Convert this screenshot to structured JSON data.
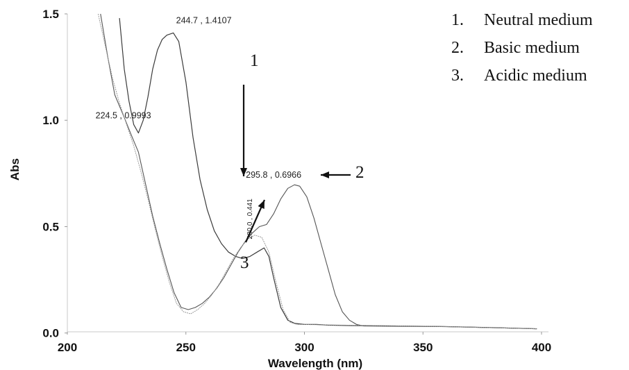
{
  "chart_data": {
    "type": "line",
    "xlabel": "Wavelength (nm)",
    "ylabel": "Abs",
    "xlim": [
      200,
      400
    ],
    "ylim": [
      -0.2,
      1.5
    ],
    "xticks": [
      "200",
      "250",
      "300",
      "350",
      "400"
    ],
    "yticks": [
      "0.0",
      "0.5",
      "1.0",
      "1.5"
    ],
    "grid": false,
    "legend_position": "top-right",
    "legend": [
      {
        "number": "1.",
        "label": "Neutral medium"
      },
      {
        "number": "2.",
        "label": "Basic medium"
      },
      {
        "number": "3.",
        "label": "Acidic medium"
      }
    ],
    "series": [
      {
        "name": "Neutral medium",
        "x": [
          222,
          224,
          226,
          228,
          230,
          232,
          234,
          236,
          238,
          240,
          242,
          244.7,
          247,
          250,
          253,
          256,
          259,
          262,
          265,
          268,
          271,
          274,
          277,
          280,
          283,
          285,
          287,
          290,
          293,
          296,
          300,
          305,
          310,
          320,
          340,
          360,
          380,
          398
        ],
        "y": [
          1.48,
          1.24,
          1.09,
          0.98,
          0.94,
          1.0,
          1.11,
          1.24,
          1.33,
          1.38,
          1.4,
          1.4107,
          1.37,
          1.18,
          0.92,
          0.72,
          0.58,
          0.48,
          0.42,
          0.38,
          0.36,
          0.35,
          0.36,
          0.38,
          0.4,
          0.36,
          0.26,
          0.12,
          0.06,
          0.045,
          0.04,
          0.04,
          0.037,
          0.035,
          0.033,
          0.03,
          0.025,
          0.02
        ]
      },
      {
        "name": "Basic medium",
        "x": [
          214,
          217,
          220,
          224.5,
          227,
          230,
          233,
          236,
          239,
          242,
          245,
          248,
          251,
          254,
          257,
          260,
          263,
          266,
          269,
          272,
          275,
          278,
          281,
          284,
          287,
          290,
          293,
          295.8,
          298,
          301,
          304,
          307,
          310,
          313,
          316,
          319,
          322,
          325,
          335,
          360,
          398
        ],
        "y": [
          1.5,
          1.3,
          1.12,
          0.9993,
          0.93,
          0.85,
          0.7,
          0.55,
          0.42,
          0.3,
          0.19,
          0.12,
          0.11,
          0.12,
          0.14,
          0.17,
          0.21,
          0.26,
          0.32,
          0.38,
          0.43,
          0.47,
          0.5,
          0.51,
          0.56,
          0.63,
          0.68,
          0.6966,
          0.69,
          0.64,
          0.54,
          0.42,
          0.3,
          0.18,
          0.1,
          0.06,
          0.04,
          0.033,
          0.032,
          0.03,
          0.02
        ]
      },
      {
        "name": "Acidic medium",
        "x": [
          213,
          216,
          219,
          222,
          225,
          228,
          231,
          234,
          237,
          240,
          243,
          246,
          249,
          252,
          255,
          258,
          261,
          264,
          267,
          270,
          273,
          276,
          279,
          282,
          285,
          288,
          291,
          294,
          297,
          300,
          310,
          330,
          360,
          398
        ],
        "y": [
          1.5,
          1.35,
          1.2,
          1.08,
          0.98,
          0.88,
          0.76,
          0.63,
          0.49,
          0.36,
          0.24,
          0.14,
          0.1,
          0.09,
          0.11,
          0.14,
          0.18,
          0.23,
          0.29,
          0.35,
          0.4,
          0.44,
          0.46,
          0.45,
          0.38,
          0.24,
          0.11,
          0.05,
          0.04,
          0.04,
          0.038,
          0.035,
          0.03,
          0.02
        ]
      }
    ],
    "peak_labels": [
      {
        "text": "244.7 , 1.4107",
        "x": 244.7,
        "y": 1.4107
      },
      {
        "text": "224.5 , 0.9993",
        "x": 224.5,
        "y": 0.9993
      },
      {
        "text": "295.8 , 0.6966",
        "x": 295.8,
        "y": 0.6966
      },
      {
        "text": "280.0 , 0.441",
        "x": 280.0,
        "y": 0.441
      }
    ],
    "annotations": [
      {
        "text": "1",
        "x": 275,
        "y": 1.08
      },
      {
        "text": "2",
        "x": 307,
        "y": 0.66
      },
      {
        "text": "3",
        "x": 275,
        "y": 0.3
      }
    ]
  }
}
